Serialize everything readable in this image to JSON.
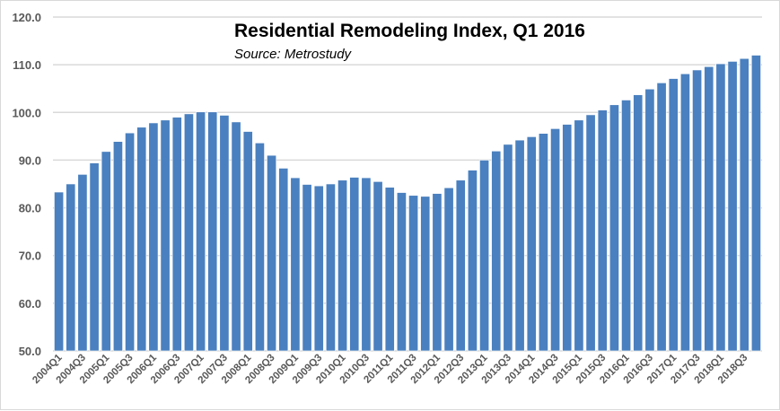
{
  "chart_data": {
    "type": "bar",
    "title": "Residential Remodeling Index, Q1 2016",
    "subtitle": "Source: Metrostudy",
    "xlabel": "",
    "ylabel": "",
    "ylim": [
      50,
      120
    ],
    "yticks": [
      "50.0",
      "60.0",
      "70.0",
      "80.0",
      "90.0",
      "100.0",
      "110.0",
      "120.0"
    ],
    "grid": true,
    "bar_color": "#4a80bf",
    "categories": [
      "2004Q1",
      "2004Q2",
      "2004Q3",
      "2004Q4",
      "2005Q1",
      "2005Q2",
      "2005Q3",
      "2005Q4",
      "2006Q1",
      "2006Q2",
      "2006Q3",
      "2006Q4",
      "2007Q1",
      "2007Q2",
      "2007Q3",
      "2007Q4",
      "2008Q1",
      "2008Q2",
      "2008Q3",
      "2008Q4",
      "2009Q1",
      "2009Q2",
      "2009Q3",
      "2009Q4",
      "2010Q1",
      "2010Q2",
      "2010Q3",
      "2010Q4",
      "2011Q1",
      "2011Q2",
      "2011Q3",
      "2011Q4",
      "2012Q1",
      "2012Q2",
      "2012Q3",
      "2012Q4",
      "2013Q1",
      "2013Q2",
      "2013Q3",
      "2013Q4",
      "2014Q1",
      "2014Q2",
      "2014Q3",
      "2014Q4",
      "2015Q1",
      "2015Q2",
      "2015Q3",
      "2015Q4",
      "2016Q1",
      "2016Q2",
      "2016Q3",
      "2016Q4",
      "2017Q1",
      "2017Q2",
      "2017Q3",
      "2017Q4",
      "2018Q1",
      "2018Q2",
      "2018Q3",
      "2018Q4"
    ],
    "shown_x_labels": [
      "2004Q1",
      "2004Q3",
      "2005Q1",
      "2005Q3",
      "2006Q1",
      "2006Q3",
      "2007Q1",
      "2007Q3",
      "2008Q1",
      "2008Q3",
      "2009Q1",
      "2009Q3",
      "2010Q1",
      "2010Q3",
      "2011Q1",
      "2011Q3",
      "2012Q1",
      "2012Q3",
      "2013Q1",
      "2013Q3",
      "2014Q1",
      "2014Q3",
      "2015Q1",
      "2015Q3",
      "2016Q1",
      "2016Q3",
      "2017Q1",
      "2017Q3",
      "2018Q1",
      "2018Q3"
    ],
    "values": [
      83.3,
      85.0,
      87.0,
      89.4,
      91.8,
      93.9,
      95.7,
      96.9,
      97.8,
      98.4,
      99.0,
      99.7,
      100.1,
      100.1,
      99.4,
      98.0,
      96.0,
      93.6,
      91.0,
      88.3,
      86.3,
      84.9,
      84.6,
      85.0,
      85.8,
      86.4,
      86.3,
      85.5,
      84.3,
      83.2,
      82.6,
      82.4,
      83.0,
      84.2,
      85.8,
      87.9,
      90.0,
      91.9,
      93.3,
      94.2,
      94.9,
      95.6,
      96.6,
      97.5,
      98.4,
      99.5,
      100.5,
      101.6,
      102.6,
      103.7,
      104.9,
      106.2,
      107.1,
      108.1,
      108.9,
      109.6,
      110.2,
      110.7,
      111.3,
      112.0
    ]
  }
}
